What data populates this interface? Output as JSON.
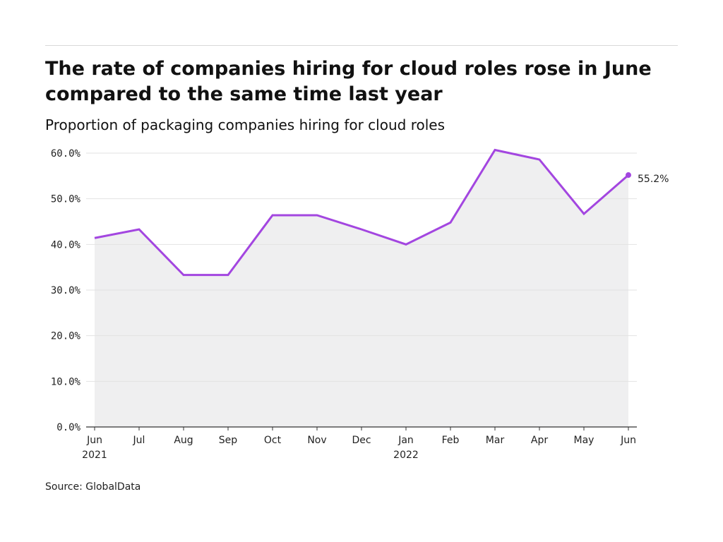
{
  "header": {
    "title": "The rate of companies hiring for cloud roles rose in June compared to the same time last year",
    "subtitle": "Proportion of packaging companies hiring for cloud roles"
  },
  "source": "Source: GlobalData",
  "colors": {
    "line": "#a346e0",
    "area": "#efeff0",
    "grid": "#e2e2e2",
    "axis": "#333333"
  },
  "chart_data": {
    "type": "area",
    "title": "The rate of companies hiring for cloud roles rose in June compared to the same time last year",
    "subtitle": "Proportion of packaging companies hiring for cloud roles",
    "x": [
      "Jun 2021",
      "Jul 2021",
      "Aug 2021",
      "Sep 2021",
      "Oct 2021",
      "Nov 2021",
      "Dec 2021",
      "Jan 2022",
      "Feb 2022",
      "Mar 2022",
      "Apr 2022",
      "May 2022",
      "Jun 2022"
    ],
    "x_tick_labels": [
      [
        "Jun",
        "2021"
      ],
      [
        "Jul"
      ],
      [
        "Aug"
      ],
      [
        "Sep"
      ],
      [
        "Oct"
      ],
      [
        "Nov"
      ],
      [
        "Dec"
      ],
      [
        "Jan",
        "2022"
      ],
      [
        "Feb"
      ],
      [
        "Mar"
      ],
      [
        "Apr"
      ],
      [
        "May"
      ],
      [
        "Jun"
      ]
    ],
    "series": [
      {
        "values": [
          41.4,
          43.3,
          33.3,
          33.3,
          46.4,
          46.4,
          43.3,
          40.0,
          44.8,
          60.7,
          58.6,
          46.7,
          55.2
        ]
      }
    ],
    "y_ticks": [
      "0.0%",
      "10.0%",
      "20.0%",
      "30.0%",
      "40.0%",
      "50.0%",
      "60.0%"
    ],
    "ylim": [
      0,
      60
    ],
    "grid": true,
    "last_point_label": "55.2%",
    "xlabel": "",
    "ylabel": ""
  }
}
